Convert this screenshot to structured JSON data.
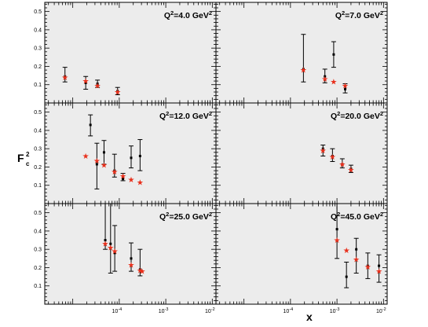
{
  "chart_data": {
    "type": "scatter",
    "ylabel": "F",
    "ylabel_sup": "2",
    "ylabel_sub": "c",
    "xlabel": "x",
    "xscale": "log",
    "xlim": [
      2.5e-06,
      0.012
    ],
    "ylim": [
      0,
      0.55
    ],
    "yticks": [
      "0.1",
      "0.2",
      "0.3",
      "0.4",
      "0.5"
    ],
    "xtick_labels": [
      {
        "value": 0.0001,
        "base": "10",
        "exp": "-4"
      },
      {
        "value": 0.001,
        "base": "10",
        "exp": "-3"
      },
      {
        "value": 0.01,
        "base": "10",
        "exp": "-2"
      }
    ],
    "colors": {
      "data": "#000000",
      "prediction": "#e8301c",
      "panel_bg": "#ececec",
      "frame": "#000000"
    },
    "panels": [
      {
        "label": "Q",
        "label_sup": "2",
        "label_value": "=4.0 GeV",
        "label_unit_sup": "2",
        "data": [
          {
            "x": 6.8e-06,
            "y": 0.145,
            "ylo": 0.115,
            "yhi": 0.195
          },
          {
            "x": 1.9e-05,
            "y": 0.11,
            "ylo": 0.075,
            "yhi": 0.145
          },
          {
            "x": 3.4e-05,
            "y": 0.105,
            "ylo": 0.085,
            "yhi": 0.125
          },
          {
            "x": 9.2e-05,
            "y": 0.065,
            "ylo": 0.045,
            "yhi": 0.085
          }
        ],
        "predictions": [
          {
            "x": 6.8e-06,
            "y": 0.14
          },
          {
            "x": 1.9e-05,
            "y": 0.12
          },
          {
            "x": 3.4e-05,
            "y": 0.095
          },
          {
            "x": 9.2e-05,
            "y": 0.06
          }
        ]
      },
      {
        "label": "Q",
        "label_sup": "2",
        "label_value": "=7.0 GeV",
        "label_unit_sup": "2",
        "data": [
          {
            "x": 0.00019,
            "y": 0.185,
            "ylo": 0.115,
            "yhi": 0.375
          },
          {
            "x": 0.00055,
            "y": 0.145,
            "ylo": 0.11,
            "yhi": 0.185
          },
          {
            "x": 0.00085,
            "y": 0.265,
            "ylo": 0.195,
            "yhi": 0.335
          },
          {
            "x": 0.0015,
            "y": 0.075,
            "ylo": 0.055,
            "yhi": 0.105
          }
        ],
        "predictions": [
          {
            "x": 0.00019,
            "y": 0.18
          },
          {
            "x": 0.00055,
            "y": 0.13
          },
          {
            "x": 0.00085,
            "y": 0.115
          },
          {
            "x": 0.0015,
            "y": 0.095
          }
        ]
      },
      {
        "label": "Q",
        "label_sup": "2",
        "label_value": "=12.0 GeV",
        "label_unit_sup": "2",
        "data": [
          {
            "x": 2.4e-05,
            "y": 0.43,
            "ylo": 0.37,
            "yhi": 0.485
          },
          {
            "x": 3.3e-05,
            "y": 0.215,
            "ylo": 0.08,
            "yhi": 0.33
          },
          {
            "x": 4.7e-05,
            "y": 0.28,
            "ylo": 0.215,
            "yhi": 0.345
          },
          {
            "x": 7.9e-05,
            "y": 0.18,
            "ylo": 0.145,
            "yhi": 0.27
          },
          {
            "x": 0.00012,
            "y": 0.135,
            "ylo": 0.125,
            "yhi": 0.165
          },
          {
            "x": 0.00018,
            "y": 0.25,
            "ylo": 0.195,
            "yhi": 0.315
          },
          {
            "x": 0.00028,
            "y": 0.26,
            "ylo": 0.18,
            "yhi": 0.35
          }
        ],
        "predictions": [
          {
            "x": 1.9e-05,
            "y": 0.26
          },
          {
            "x": 3.3e-05,
            "y": 0.235
          },
          {
            "x": 4.7e-05,
            "y": 0.21
          },
          {
            "x": 7.9e-05,
            "y": 0.175
          },
          {
            "x": 0.00012,
            "y": 0.15
          },
          {
            "x": 0.00018,
            "y": 0.13
          },
          {
            "x": 0.00028,
            "y": 0.115
          }
        ]
      },
      {
        "label": "Q",
        "label_sup": "2",
        "label_value": "=20.0 GeV",
        "label_unit_sup": "2",
        "data": [
          {
            "x": 0.0005,
            "y": 0.3,
            "ylo": 0.26,
            "yhi": 0.32
          },
          {
            "x": 0.0008,
            "y": 0.26,
            "ylo": 0.23,
            "yhi": 0.3
          },
          {
            "x": 0.0013,
            "y": 0.215,
            "ylo": 0.195,
            "yhi": 0.245
          },
          {
            "x": 0.002,
            "y": 0.19,
            "ylo": 0.17,
            "yhi": 0.21
          }
        ],
        "predictions": [
          {
            "x": 0.0005,
            "y": 0.29
          },
          {
            "x": 0.0008,
            "y": 0.255
          },
          {
            "x": 0.0013,
            "y": 0.215
          },
          {
            "x": 0.002,
            "y": 0.185
          }
        ]
      },
      {
        "label": "Q",
        "label_sup": "2",
        "label_value": "=25.0 GeV",
        "label_unit_sup": "2",
        "data": [
          {
            "x": 5e-05,
            "y": 0.35,
            "ylo": 0.3,
            "yhi": 0.55
          },
          {
            "x": 6.5e-05,
            "y": 0.33,
            "ylo": 0.17,
            "yhi": 0.55
          },
          {
            "x": 8e-05,
            "y": 0.28,
            "ylo": 0.18,
            "yhi": 0.43
          },
          {
            "x": 0.00018,
            "y": 0.25,
            "ylo": 0.18,
            "yhi": 0.335
          },
          {
            "x": 0.00028,
            "y": 0.19,
            "ylo": 0.155,
            "yhi": 0.3
          }
        ],
        "predictions": [
          {
            "x": 5e-05,
            "y": 0.33
          },
          {
            "x": 6.5e-05,
            "y": 0.31
          },
          {
            "x": 8e-05,
            "y": 0.29
          },
          {
            "x": 0.00018,
            "y": 0.215
          },
          {
            "x": 0.00028,
            "y": 0.185
          },
          {
            "x": 0.00031,
            "y": 0.18
          }
        ]
      },
      {
        "label": "Q",
        "label_sup": "2",
        "label_value": "=45.0 GeV",
        "label_unit_sup": "2",
        "data": [
          {
            "x": 0.001,
            "y": 0.41,
            "ylo": 0.25,
            "yhi": 0.55
          },
          {
            "x": 0.0016,
            "y": 0.15,
            "ylo": 0.09,
            "yhi": 0.23
          },
          {
            "x": 0.0026,
            "y": 0.3,
            "ylo": 0.17,
            "yhi": 0.36
          },
          {
            "x": 0.0046,
            "y": 0.21,
            "ylo": 0.14,
            "yhi": 0.28
          },
          {
            "x": 0.008,
            "y": 0.21,
            "ylo": 0.12,
            "yhi": 0.27
          }
        ],
        "predictions": [
          {
            "x": 0.001,
            "y": 0.35
          },
          {
            "x": 0.0016,
            "y": 0.295
          },
          {
            "x": 0.0026,
            "y": 0.245
          },
          {
            "x": 0.0046,
            "y": 0.205
          },
          {
            "x": 0.008,
            "y": 0.18
          }
        ]
      }
    ]
  }
}
